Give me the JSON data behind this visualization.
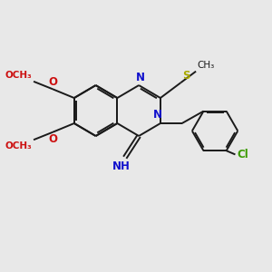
{
  "bg_color": "#e8e8e8",
  "bond_color": "#1a1a1a",
  "n_color": "#1010cc",
  "o_color": "#cc1010",
  "s_color": "#aaaa00",
  "cl_color": "#3a9a00",
  "lw": 1.4,
  "doff": 0.07,
  "xlim": [
    0,
    10
  ],
  "ylim": [
    0,
    10
  ]
}
